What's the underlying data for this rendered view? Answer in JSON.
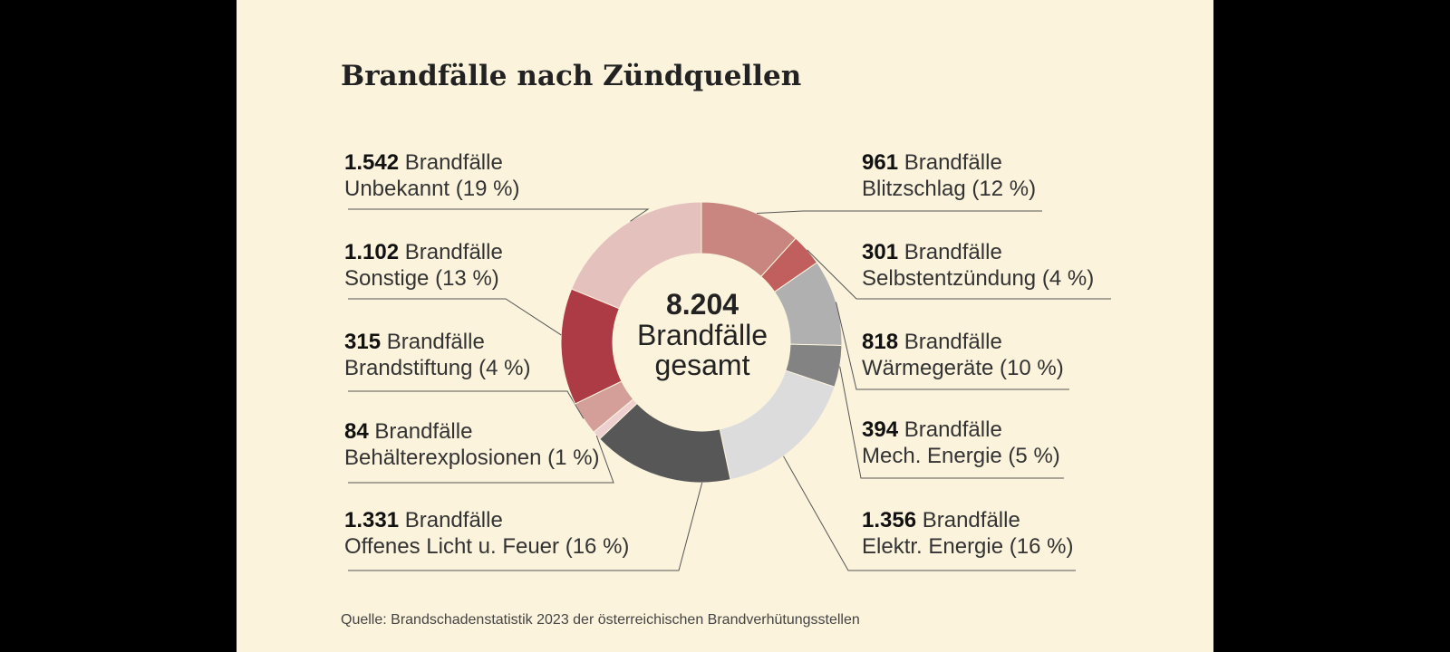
{
  "title": "Brandfälle nach Zündquellen",
  "source": "Quelle: Brandschadenstatistik 2023 der österreichischen Brandverhütungsstellen",
  "center": {
    "value": "8.204",
    "line1": "Brandfälle",
    "line2": "gesamt"
  },
  "chart_data": {
    "type": "pie",
    "style": "donut",
    "total": 8204,
    "unit": "Brandfälle",
    "slices": [
      {
        "name": "Blitzschlag",
        "count": "961",
        "value": 961,
        "percent": "12 %",
        "color": "#c98580"
      },
      {
        "name": "Selbstentzündung",
        "count": "301",
        "value": 301,
        "percent": "4 %",
        "color": "#c05f5d"
      },
      {
        "name": "Wärmegeräte",
        "count": "818",
        "value": 818,
        "percent": "10 %",
        "color": "#b0b0b0"
      },
      {
        "name": "Mech. Energie",
        "count": "394",
        "value": 394,
        "percent": "5 %",
        "color": "#838383"
      },
      {
        "name": "Elektr. Energie",
        "count": "1.356",
        "value": 1356,
        "percent": "16 %",
        "color": "#dcdcdc"
      },
      {
        "name": "Offenes Licht u. Feuer",
        "count": "1.331",
        "value": 1331,
        "percent": "16 %",
        "color": "#575757"
      },
      {
        "name": "Behälterexplosionen",
        "count": "84",
        "value": 84,
        "percent": "1 %",
        "color": "#efd0d0"
      },
      {
        "name": "Brandstiftung",
        "count": "315",
        "value": 315,
        "percent": "4 %",
        "color": "#d49f99"
      },
      {
        "name": "Sonstige",
        "count": "1.102",
        "value": 1102,
        "percent": "13 %",
        "color": "#ad3b45"
      },
      {
        "name": "Unbekannt",
        "count": "1.542",
        "value": 1542,
        "percent": "19 %",
        "color": "#e4c1bd"
      }
    ]
  }
}
